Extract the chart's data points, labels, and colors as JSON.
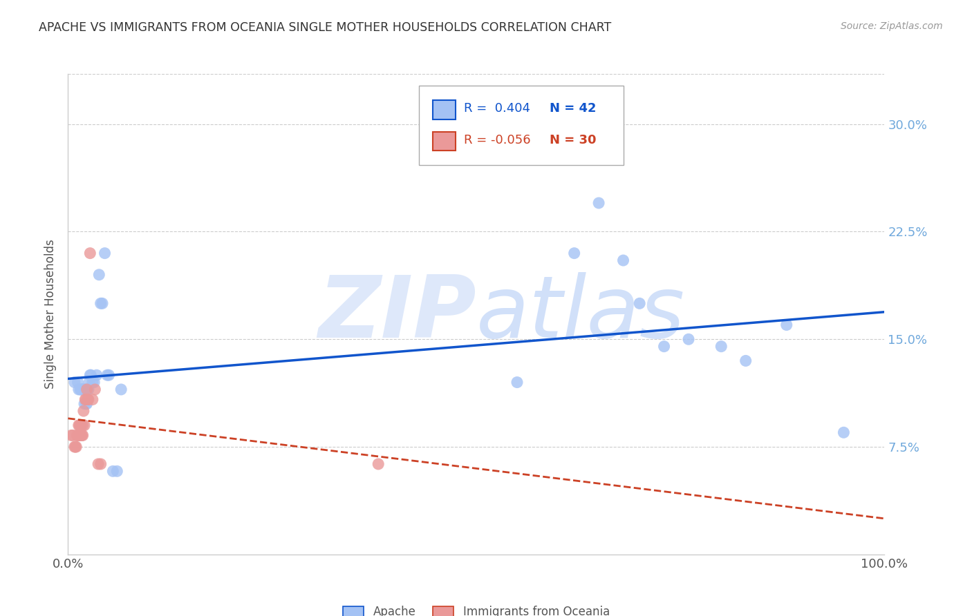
{
  "title": "APACHE VS IMMIGRANTS FROM OCEANIA SINGLE MOTHER HOUSEHOLDS CORRELATION CHART",
  "source": "Source: ZipAtlas.com",
  "ylabel": "Single Mother Households",
  "xlim": [
    0.0,
    1.0
  ],
  "ylim": [
    0.0,
    0.335
  ],
  "yticks": [
    0.075,
    0.15,
    0.225,
    0.3
  ],
  "ytick_labels": [
    "7.5%",
    "15.0%",
    "22.5%",
    "30.0%"
  ],
  "legend_r1": "R =  0.404",
  "legend_n1": "N = 42",
  "legend_r2": "R = -0.056",
  "legend_n2": "N = 30",
  "apache_color": "#a4c2f4",
  "oceania_color": "#ea9999",
  "trendline_apache_color": "#1155cc",
  "trendline_oceania_color": "#cc4125",
  "watermark_color": "#c9daf8",
  "background_color": "#ffffff",
  "grid_color": "#cccccc",
  "right_tick_color": "#6fa8dc",
  "apache_x": [
    0.008,
    0.012,
    0.013,
    0.015,
    0.016,
    0.017,
    0.018,
    0.019,
    0.02,
    0.02,
    0.021,
    0.022,
    0.022,
    0.023,
    0.024,
    0.025,
    0.026,
    0.027,
    0.028,
    0.03,
    0.032,
    0.035,
    0.038,
    0.04,
    0.042,
    0.045,
    0.048,
    0.05,
    0.055,
    0.06,
    0.065,
    0.55,
    0.62,
    0.65,
    0.68,
    0.7,
    0.73,
    0.76,
    0.8,
    0.83,
    0.88,
    0.95
  ],
  "apache_y": [
    0.12,
    0.12,
    0.115,
    0.115,
    0.115,
    0.115,
    0.115,
    0.115,
    0.115,
    0.105,
    0.115,
    0.115,
    0.105,
    0.105,
    0.115,
    0.115,
    0.12,
    0.125,
    0.125,
    0.12,
    0.12,
    0.125,
    0.195,
    0.175,
    0.175,
    0.21,
    0.125,
    0.125,
    0.058,
    0.058,
    0.115,
    0.12,
    0.21,
    0.245,
    0.205,
    0.175,
    0.145,
    0.15,
    0.145,
    0.135,
    0.16,
    0.085
  ],
  "oceania_x": [
    0.004,
    0.006,
    0.008,
    0.009,
    0.01,
    0.011,
    0.012,
    0.013,
    0.013,
    0.014,
    0.015,
    0.015,
    0.016,
    0.016,
    0.017,
    0.018,
    0.018,
    0.019,
    0.02,
    0.021,
    0.022,
    0.023,
    0.024,
    0.025,
    0.027,
    0.03,
    0.033,
    0.037,
    0.04,
    0.38
  ],
  "oceania_y": [
    0.083,
    0.083,
    0.075,
    0.075,
    0.075,
    0.083,
    0.083,
    0.09,
    0.083,
    0.09,
    0.09,
    0.083,
    0.083,
    0.09,
    0.083,
    0.083,
    0.09,
    0.1,
    0.09,
    0.108,
    0.108,
    0.115,
    0.108,
    0.108,
    0.21,
    0.108,
    0.115,
    0.063,
    0.063,
    0.063
  ]
}
